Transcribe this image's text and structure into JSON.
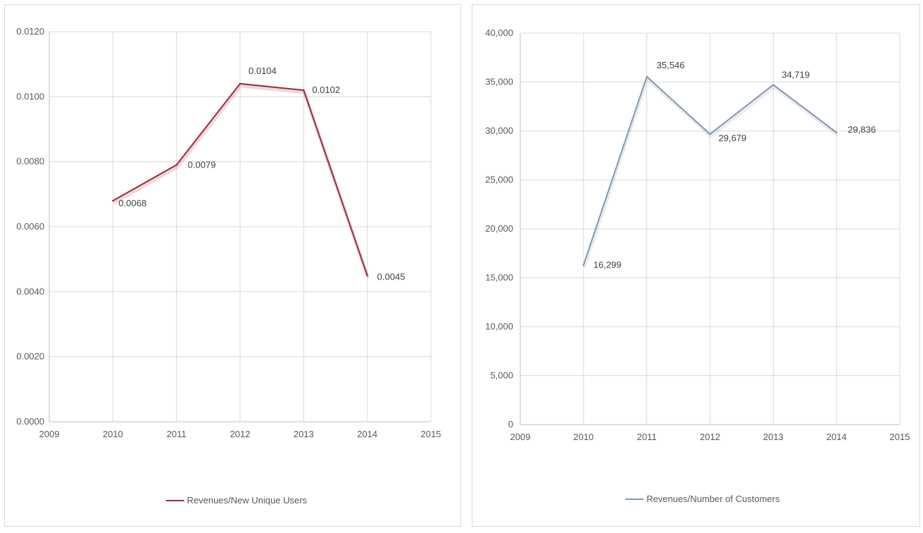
{
  "chart_data": [
    {
      "type": "scatter",
      "title": "",
      "xlabel": "",
      "ylabel": "",
      "x": [
        2010,
        2011,
        2012,
        2013,
        2014
      ],
      "series": [
        {
          "name": "Revenues/New Unique Users",
          "values": [
            0.0068,
            0.0079,
            0.0104,
            0.0102,
            0.0045
          ],
          "color": "#9c2a3b"
        }
      ],
      "data_labels": [
        "0.0068",
        "0.0079",
        "0.0104",
        "0.0102",
        "0.0045"
      ],
      "xlim": [
        2009,
        2015
      ],
      "ylim": [
        0,
        0.012
      ],
      "x_ticks": [
        "2009",
        "2010",
        "2011",
        "2012",
        "2013",
        "2014",
        "2015"
      ],
      "y_ticks": [
        "0.0000",
        "0.0020",
        "0.0040",
        "0.0060",
        "0.0080",
        "0.0100",
        "0.0120"
      ],
      "grid": true,
      "legend": "bottom"
    },
    {
      "type": "scatter",
      "title": "",
      "xlabel": "",
      "ylabel": "",
      "x": [
        2010,
        2011,
        2012,
        2013,
        2014
      ],
      "series": [
        {
          "name": "Revenues/Number of Customers",
          "values": [
            16299,
            35546,
            29679,
            34719,
            29836
          ],
          "color": "#8496b0"
        }
      ],
      "data_labels": [
        "16,299",
        "35,546",
        "29,679",
        "34,719",
        "29,836"
      ],
      "xlim": [
        2009,
        2015
      ],
      "ylim": [
        0,
        40000
      ],
      "x_ticks": [
        "2009",
        "2010",
        "2011",
        "2012",
        "2013",
        "2014",
        "2015"
      ],
      "y_ticks": [
        "0",
        "5,000",
        "10,000",
        "15,000",
        "20,000",
        "25,000",
        "30,000",
        "35,000",
        "40,000"
      ],
      "grid": true,
      "legend": "bottom"
    }
  ]
}
